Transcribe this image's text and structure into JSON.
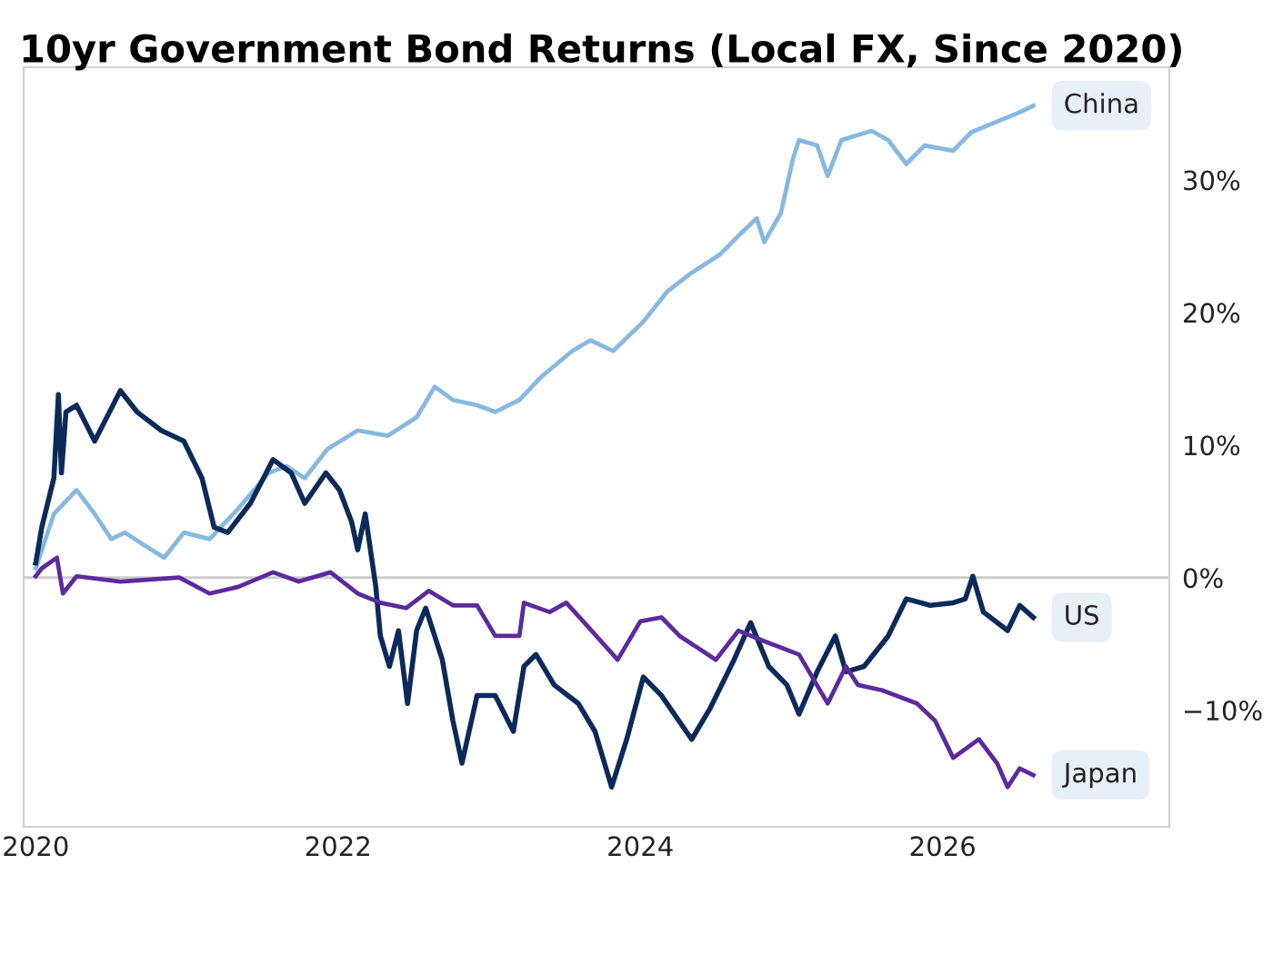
{
  "chart_data": {
    "type": "line",
    "title": "10yr Government Bond Returns (Local FX, Since 2020)",
    "xlim": [
      2019.92,
      2027.5
    ],
    "xticks": [
      2020,
      2022,
      2024,
      2026
    ],
    "ylim": [
      -18.8,
      38.5
    ],
    "yticks": [
      {
        "value": -10,
        "label": "−10%"
      },
      {
        "value": 0,
        "label": "0%"
      },
      {
        "value": 10,
        "label": "10%"
      },
      {
        "value": 20,
        "label": "20%"
      },
      {
        "value": 30,
        "label": "30%"
      }
    ],
    "grid": false,
    "legend": false,
    "line_style": "solid",
    "marker": "none",
    "ref_lines": [
      {
        "axis": "y",
        "value": 0,
        "color": "#cccccc"
      }
    ],
    "series": [
      {
        "name": "China",
        "color": "#86b8e0",
        "x": [
          2020.0,
          2020.12,
          2020.27,
          2020.39,
          2020.5,
          2020.59,
          2020.71,
          2020.85,
          2020.98,
          2021.15,
          2021.34,
          2021.54,
          2021.66,
          2021.78,
          2021.93,
          2022.13,
          2022.33,
          2022.52,
          2022.64,
          2022.76,
          2022.92,
          2023.04,
          2023.2,
          2023.35,
          2023.55,
          2023.67,
          2023.82,
          2024.02,
          2024.18,
          2024.34,
          2024.53,
          2024.65,
          2024.77,
          2024.82,
          2024.93,
          2025.01,
          2025.05,
          2025.17,
          2025.24,
          2025.33,
          2025.53,
          2025.64,
          2025.76,
          2025.88,
          2026.07,
          2026.19,
          2026.36,
          2026.51,
          2026.6
        ],
        "values": [
          0.7,
          4.8,
          6.6,
          4.8,
          2.9,
          3.4,
          2.5,
          1.5,
          3.4,
          2.9,
          5.2,
          7.9,
          8.4,
          7.5,
          9.7,
          11.1,
          10.7,
          12.1,
          14.4,
          13.4,
          13.0,
          12.5,
          13.4,
          15.2,
          17.1,
          17.9,
          17.1,
          19.3,
          21.6,
          23.0,
          24.4,
          25.8,
          27.1,
          25.3,
          27.5,
          31.6,
          33.0,
          32.6,
          30.3,
          33.0,
          33.7,
          33.0,
          31.2,
          32.6,
          32.2,
          33.6,
          34.4,
          35.1,
          35.6
        ]
      },
      {
        "name": "US",
        "color": "#0b2a5a",
        "x": [
          2020.0,
          2020.04,
          2020.12,
          2020.15,
          2020.17,
          2020.2,
          2020.27,
          2020.39,
          2020.56,
          2020.67,
          2020.83,
          2020.98,
          2021.1,
          2021.18,
          2021.27,
          2021.42,
          2021.57,
          2021.69,
          2021.78,
          2021.92,
          2022.01,
          2022.09,
          2022.13,
          2022.18,
          2022.25,
          2022.28,
          2022.34,
          2022.4,
          2022.46,
          2022.52,
          2022.58,
          2022.69,
          2022.76,
          2022.82,
          2022.92,
          2023.04,
          2023.16,
          2023.23,
          2023.31,
          2023.43,
          2023.59,
          2023.7,
          2023.81,
          2023.91,
          2024.02,
          2024.14,
          2024.34,
          2024.46,
          2024.62,
          2024.73,
          2024.85,
          2024.97,
          2025.05,
          2025.17,
          2025.29,
          2025.36,
          2025.48,
          2025.64,
          2025.76,
          2025.92,
          2026.07,
          2026.15,
          2026.2,
          2026.27,
          2026.43,
          2026.51,
          2026.6
        ],
        "values": [
          1.1,
          3.8,
          7.5,
          13.8,
          7.9,
          12.5,
          13.0,
          10.3,
          14.1,
          12.5,
          11.1,
          10.3,
          7.5,
          3.8,
          3.4,
          5.6,
          8.9,
          7.9,
          5.6,
          7.9,
          6.6,
          4.2,
          2.1,
          4.8,
          -0.7,
          -4.4,
          -6.7,
          -4.0,
          -9.5,
          -4.0,
          -2.3,
          -6.2,
          -10.8,
          -14.0,
          -8.9,
          -8.9,
          -11.6,
          -6.7,
          -5.8,
          -8.1,
          -9.5,
          -11.6,
          -15.8,
          -12.2,
          -7.5,
          -8.9,
          -12.2,
          -9.9,
          -6.2,
          -3.4,
          -6.7,
          -8.1,
          -10.3,
          -7.1,
          -4.4,
          -7.1,
          -6.7,
          -4.4,
          -1.6,
          -2.1,
          -1.9,
          -1.6,
          0.1,
          -2.6,
          -4.0,
          -2.1,
          -3.0
        ]
      },
      {
        "name": "Japan",
        "color": "#5b2a9c",
        "x": [
          2020.0,
          2020.04,
          2020.14,
          2020.18,
          2020.27,
          2020.56,
          2020.95,
          2021.15,
          2021.34,
          2021.57,
          2021.74,
          2021.95,
          2022.13,
          2022.28,
          2022.45,
          2022.6,
          2022.76,
          2022.92,
          2023.04,
          2023.2,
          2023.23,
          2023.4,
          2023.51,
          2023.63,
          2023.85,
          2024.0,
          2024.14,
          2024.26,
          2024.5,
          2024.65,
          2024.82,
          2025.05,
          2025.24,
          2025.36,
          2025.44,
          2025.6,
          2025.83,
          2025.95,
          2026.07,
          2026.24,
          2026.36,
          2026.43,
          2026.51,
          2026.6
        ],
        "values": [
          0.1,
          0.7,
          1.5,
          -1.2,
          0.1,
          -0.3,
          0.0,
          -1.2,
          -0.7,
          0.4,
          -0.3,
          0.4,
          -1.2,
          -1.9,
          -2.3,
          -1.0,
          -2.1,
          -2.1,
          -4.4,
          -4.4,
          -1.9,
          -2.6,
          -1.9,
          -3.4,
          -6.2,
          -3.3,
          -3.0,
          -4.4,
          -6.2,
          -4.0,
          -4.8,
          -5.8,
          -9.5,
          -6.7,
          -8.1,
          -8.5,
          -9.5,
          -10.8,
          -13.6,
          -12.2,
          -14.0,
          -15.8,
          -14.4,
          -14.9
        ]
      }
    ]
  }
}
